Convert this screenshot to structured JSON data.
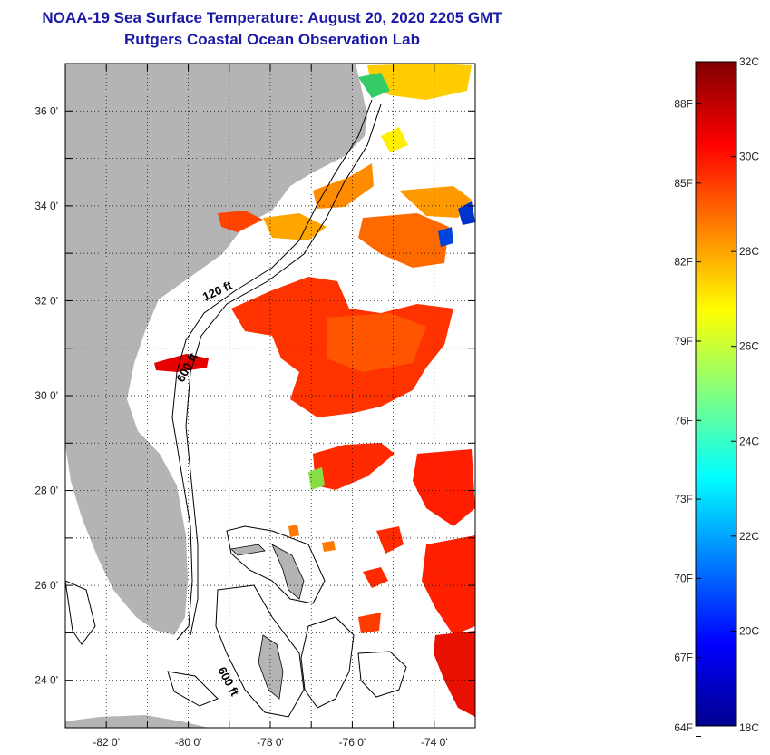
{
  "header": {
    "title": "NOAA-19 Sea Surface Temperature:  August 20, 2020 2205 GMT",
    "subtitle": "Rutgers Coastal Ocean Observation Lab"
  },
  "map": {
    "lon_range": [
      -83,
      -73
    ],
    "lat_range": [
      23,
      37
    ],
    "lon_ticks": [
      {
        "value": -82,
        "label": "-82 0'"
      },
      {
        "value": -80,
        "label": "-80 0'"
      },
      {
        "value": -78,
        "label": "-78 0'"
      },
      {
        "value": -76,
        "label": "-76 0'"
      },
      {
        "value": -74,
        "label": "-74 0'"
      }
    ],
    "lat_ticks": [
      {
        "value": 36,
        "label": "36 0'"
      },
      {
        "value": 34,
        "label": "34 0'"
      },
      {
        "value": 32,
        "label": "32 0'"
      },
      {
        "value": 30,
        "label": "30 0'"
      },
      {
        "value": 28,
        "label": "28 0'"
      },
      {
        "value": 26,
        "label": "26 0'"
      },
      {
        "value": 24,
        "label": "24 0'"
      }
    ],
    "grid": true,
    "isobath_labels": [
      "120 ft",
      "600 ft",
      "600 ft"
    ],
    "colors": {
      "land": "#b4b4b4",
      "no_data": "#ffffff",
      "grid": "#000000"
    }
  },
  "colorbar": {
    "min_c": 18,
    "max_c": 32,
    "celsius_labels": [
      {
        "value": 32,
        "label": "32C"
      },
      {
        "value": 30,
        "label": "30C"
      },
      {
        "value": 28,
        "label": "28C"
      },
      {
        "value": 26,
        "label": "26C"
      },
      {
        "value": 24,
        "label": "24C"
      },
      {
        "value": 22,
        "label": "22C"
      },
      {
        "value": 20,
        "label": "20C"
      },
      {
        "value": 18,
        "label": "18C"
      }
    ],
    "fahrenheit_labels": [
      {
        "value_c": 31.11,
        "label": "88F"
      },
      {
        "value_c": 29.44,
        "label": "85F"
      },
      {
        "value_c": 27.78,
        "label": "82F"
      },
      {
        "value_c": 26.11,
        "label": "79F"
      },
      {
        "value_c": 24.44,
        "label": "76F"
      },
      {
        "value_c": 22.78,
        "label": "73F"
      },
      {
        "value_c": 21.11,
        "label": "70F"
      },
      {
        "value_c": 19.44,
        "label": "67F"
      },
      {
        "value_c": 17.78,
        "label": "64F"
      }
    ],
    "palette": [
      "#00008f",
      "#0000ff",
      "#0080ff",
      "#00ffff",
      "#80ff80",
      "#ffff00",
      "#ff8000",
      "#ff0000",
      "#800000"
    ]
  }
}
